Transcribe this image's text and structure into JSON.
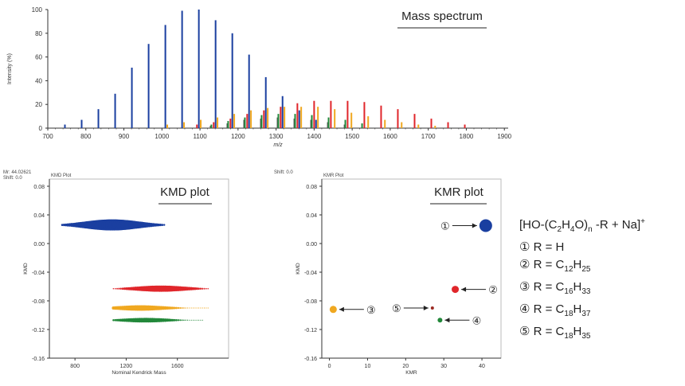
{
  "colors": {
    "peg": "#1a3fa0",
    "c12": "#e0262b",
    "c16": "#f0a820",
    "c18_37": "#22883a",
    "c18_35": "#9b2a22",
    "c18_35_bar": "#555555",
    "axis": "#333333",
    "frame": "#bbbbbb"
  },
  "legend": {
    "title_parts": [
      "[HO-(C",
      "2",
      "H",
      "4",
      "O)",
      "n",
      " -R + Na]",
      "+"
    ],
    "items": [
      {
        "num": "①",
        "text": "R = H",
        "parts": [
          "R = H"
        ]
      },
      {
        "num": "②",
        "text": "R = C12H25",
        "parts": [
          "R = C",
          "12",
          "H",
          "25"
        ]
      },
      {
        "num": "③",
        "text": "R = C16H33",
        "parts": [
          "R = C",
          "16",
          "H",
          "33"
        ]
      },
      {
        "num": "④",
        "text": "R = C18H37",
        "parts": [
          "R = C",
          "18",
          "H",
          "37"
        ]
      },
      {
        "num": "⑤",
        "text": "R = C18H35",
        "parts": [
          "R = C",
          "18",
          "H",
          "35"
        ]
      }
    ]
  },
  "chart_data": [
    {
      "type": "bar",
      "name": "mass-spectrum",
      "title": "Mass spectrum",
      "xlabel": "m/z",
      "ylabel": "Intensity (%)",
      "xlim": [
        700,
        1910
      ],
      "ylim": [
        0,
        100
      ],
      "xticks": [
        700,
        800,
        900,
        1000,
        1100,
        1200,
        1300,
        1400,
        1500,
        1600,
        1700,
        1800,
        1900
      ],
      "yticks": [
        0,
        20,
        40,
        60,
        80,
        100
      ],
      "series": [
        {
          "name": "R = H",
          "color_key": "peg",
          "x": [
            745,
            789,
            833,
            877,
            921,
            965,
            1009,
            1053,
            1097,
            1141,
            1185,
            1229,
            1273,
            1317,
            1361,
            1405
          ],
          "y": [
            3,
            7,
            16,
            29,
            51,
            71,
            87,
            99,
            100,
            91,
            80,
            62,
            43,
            27,
            15,
            7
          ]
        },
        {
          "name": "R = C12H25",
          "color_key": "c12",
          "x": [
            1092,
            1136,
            1180,
            1224,
            1268,
            1312,
            1356,
            1400,
            1444,
            1488,
            1532,
            1576,
            1620,
            1664,
            1708,
            1752,
            1796
          ],
          "y": [
            3,
            5,
            8,
            12,
            15,
            18,
            21,
            23,
            23,
            23,
            22,
            19,
            16,
            12,
            8,
            5,
            3
          ]
        },
        {
          "name": "R = C16H33",
          "color_key": "c16",
          "x": [
            1014,
            1058,
            1102,
            1146,
            1190,
            1234,
            1278,
            1322,
            1366,
            1410,
            1454,
            1498,
            1542,
            1586,
            1630,
            1674,
            1718
          ],
          "y": [
            3,
            5,
            7,
            9,
            12,
            15,
            17,
            18,
            18,
            18,
            16,
            13,
            10,
            7,
            5,
            3,
            2
          ]
        },
        {
          "name": "R = C18H37",
          "color_key": "c18_37",
          "x": [
            1130,
            1174,
            1218,
            1262,
            1306,
            1350,
            1394,
            1438,
            1482,
            1526
          ],
          "y": [
            3,
            6,
            9,
            11,
            12,
            12,
            11,
            9,
            7,
            4
          ]
        },
        {
          "name": "R = C18H35",
          "color_key": "c18_35_bar",
          "x": [
            1128,
            1172,
            1216,
            1260,
            1304,
            1348,
            1392,
            1436,
            1480
          ],
          "y": [
            2,
            4,
            7,
            8,
            9,
            8,
            7,
            5,
            3
          ]
        }
      ]
    },
    {
      "type": "scatter",
      "name": "kmd-plot",
      "title": "KMD plot",
      "header": "KMD Plot",
      "info": [
        "Mr: 44.02621",
        "Shift: 0.0"
      ],
      "xlabel": "Nominal Kendrick Mass",
      "ylabel": "KMD",
      "xlim": [
        600,
        2000
      ],
      "ylim": [
        -0.16,
        0.09
      ],
      "xticks": [
        800,
        1200,
        1600
      ],
      "yticks": [
        0.08,
        0.04,
        0.0,
        -0.04,
        -0.08,
        -0.12,
        -0.16
      ],
      "ytick_labels": [
        "0.08",
        "0.04",
        "0.00",
        "-0.04",
        "-0.08",
        "-0.12",
        "-0.16"
      ],
      "series": [
        {
          "name": "R = H",
          "color_key": "peg",
          "kmd": 0.026,
          "x_start": 700,
          "x_end": 1500,
          "peak_x": 1090,
          "max_size": 7
        },
        {
          "name": "R = C12H25",
          "color_key": "c12",
          "kmd": -0.063,
          "x_start": 1100,
          "x_end": 1850,
          "peak_x": 1470,
          "max_size": 4
        },
        {
          "name": "R = C16H33",
          "color_key": "c16",
          "kmd": -0.09,
          "x_start": 1100,
          "x_end": 1850,
          "peak_x": 1310,
          "max_size": 3.5
        },
        {
          "name": "R = C18H37",
          "color_key": "c18_37",
          "kmd": -0.107,
          "x_start": 1100,
          "x_end": 1800,
          "peak_x": 1350,
          "max_size": 3
        }
      ]
    },
    {
      "type": "scatter",
      "name": "kmr-plot",
      "title": "KMR plot",
      "header": "KMR Plot",
      "info": [
        "Shift: 0.0"
      ],
      "xlabel": "KMR",
      "ylabel": "KMD",
      "xlim": [
        -2,
        45
      ],
      "ylim": [
        -0.16,
        0.09
      ],
      "xticks": [
        0,
        10,
        20,
        30,
        40
      ],
      "yticks": [
        0.08,
        0.04,
        0.0,
        -0.04,
        -0.08,
        -0.12,
        -0.16
      ],
      "ytick_labels": [
        "0.08",
        "0.04",
        "0.00",
        "-0.04",
        "-0.08",
        "-0.12",
        "-0.16"
      ],
      "points": [
        {
          "label": "①",
          "kmr": 41,
          "kmd": 0.025,
          "r": 8,
          "color_key": "peg",
          "arrow_from": "left"
        },
        {
          "label": "②",
          "kmr": 33,
          "kmd": -0.064,
          "r": 4.5,
          "color_key": "c12",
          "arrow_from": "right"
        },
        {
          "label": "③",
          "kmr": 1,
          "kmd": -0.092,
          "r": 4.5,
          "color_key": "c16",
          "arrow_from": "right"
        },
        {
          "label": "④",
          "kmr": 29,
          "kmd": -0.107,
          "r": 3,
          "color_key": "c18_37",
          "arrow_from": "right"
        },
        {
          "label": "⑤",
          "kmr": 27,
          "kmd": -0.09,
          "r": 2,
          "color_key": "c18_35",
          "arrow_from": "left"
        }
      ]
    }
  ]
}
